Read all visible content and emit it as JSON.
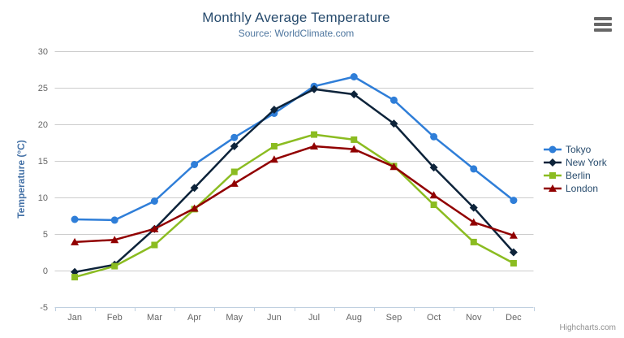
{
  "header": {
    "title": "Monthly Average Temperature",
    "subtitle": "Source: WorldClimate.com"
  },
  "credits": {
    "label": "Highcharts.com"
  },
  "export_menu": {
    "icon": "hamburger-icon"
  },
  "chart_data": {
    "type": "line",
    "title": "Monthly Average Temperature",
    "subtitle": "Source: WorldClimate.com",
    "categories": [
      "Jan",
      "Feb",
      "Mar",
      "Apr",
      "May",
      "Jun",
      "Jul",
      "Aug",
      "Sep",
      "Oct",
      "Nov",
      "Dec"
    ],
    "xlabel": "",
    "ylabel": "Temperature (°C)",
    "ylim": [
      -5,
      30
    ],
    "ytick_step": 5,
    "grid": true,
    "legend_position": "right",
    "series": [
      {
        "name": "Tokyo",
        "color": "#2f7ed8",
        "marker": "circle",
        "values": [
          7.0,
          6.9,
          9.5,
          14.5,
          18.2,
          21.5,
          25.2,
          26.5,
          23.3,
          18.3,
          13.9,
          9.6
        ]
      },
      {
        "name": "New York",
        "color": "#0d233a",
        "marker": "diamond",
        "values": [
          -0.2,
          0.8,
          5.7,
          11.3,
          17.0,
          22.0,
          24.8,
          24.1,
          20.1,
          14.1,
          8.6,
          2.5
        ]
      },
      {
        "name": "Berlin",
        "color": "#8bbc21",
        "marker": "square",
        "values": [
          -0.9,
          0.6,
          3.5,
          8.4,
          13.5,
          17.0,
          18.6,
          17.9,
          14.3,
          9.0,
          3.9,
          1.0
        ]
      },
      {
        "name": "London",
        "color": "#910000",
        "marker": "triangle",
        "values": [
          3.9,
          4.2,
          5.7,
          8.5,
          11.9,
          15.2,
          17.0,
          16.6,
          14.2,
          10.3,
          6.6,
          4.8
        ]
      }
    ],
    "style": {
      "grid_color": "#cccccc",
      "axis_line_color": "#c0d0e0",
      "tick_label_color": "#666666",
      "yaxis_title_color": "#4572a7"
    }
  }
}
